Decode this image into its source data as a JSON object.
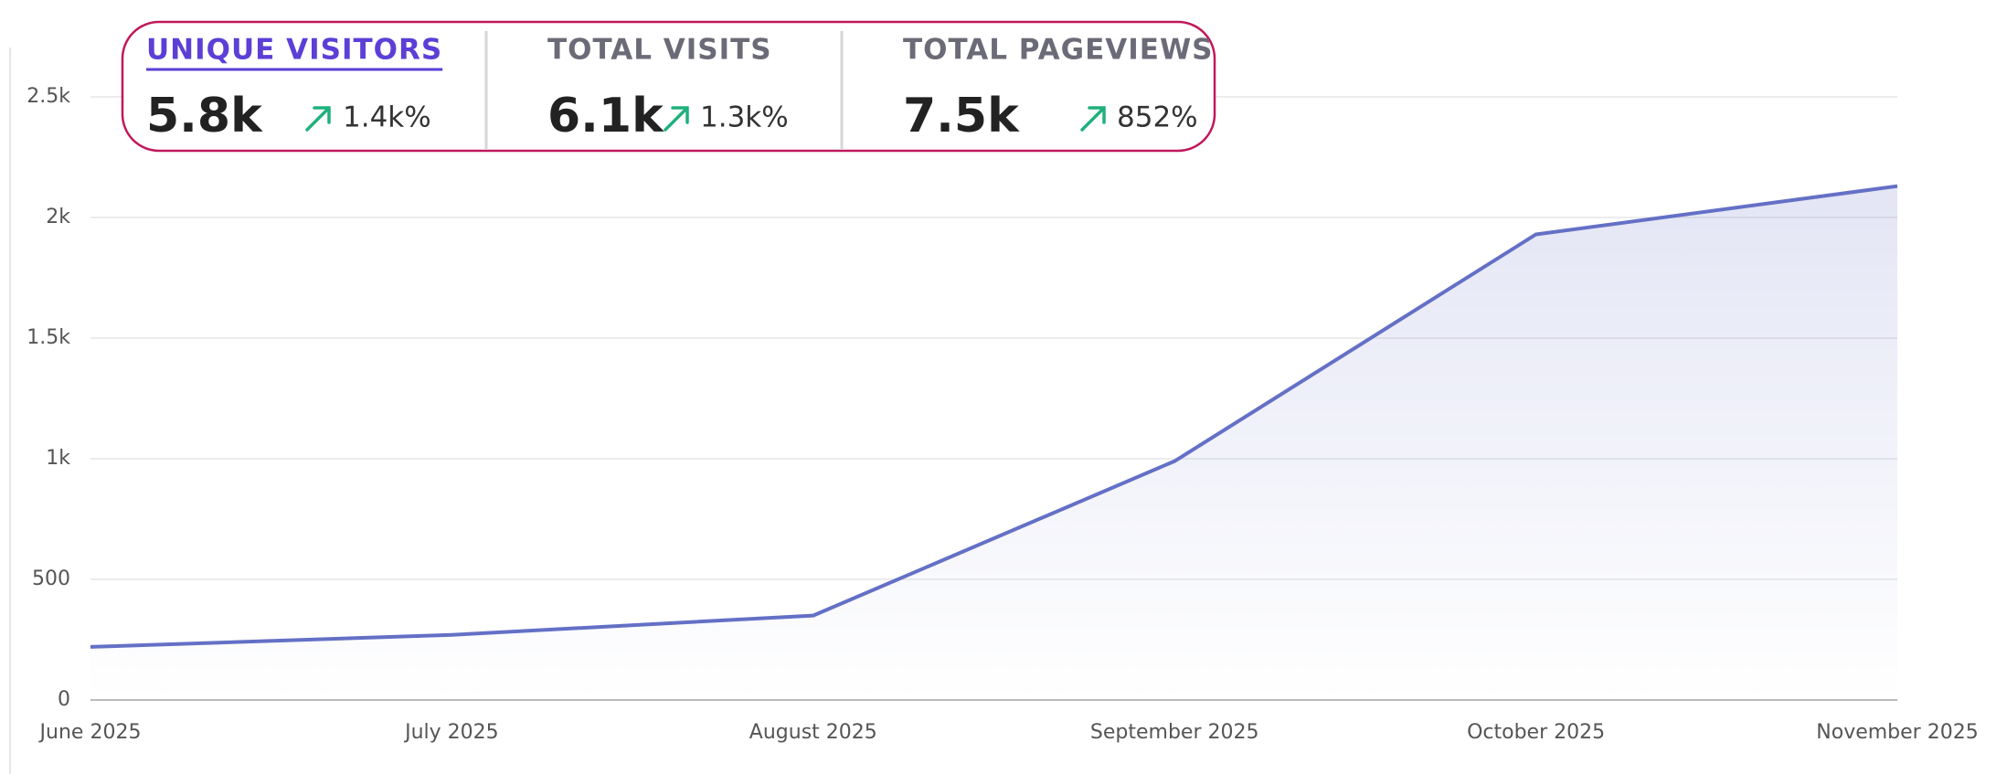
{
  "chart_data": {
    "type": "line",
    "categories": [
      "June 2025",
      "July 2025",
      "August 2025",
      "September 2025",
      "October 2025",
      "November 2025"
    ],
    "series": [
      {
        "color": "#6470c6",
        "values": [
          220,
          270,
          350,
          990,
          1930,
          2130
        ]
      }
    ],
    "ylim": [
      0,
      2500
    ],
    "yticks": [
      0,
      500,
      {
        "value": 1000,
        "label": "1k"
      },
      {
        "value": 1500,
        "label": "1.5k"
      },
      {
        "value": 2000,
        "label": "2k"
      },
      {
        "value": 2500,
        "label": "2.5k"
      }
    ],
    "grid": true
  },
  "metrics": [
    {
      "label": "UNIQUE VISITORS",
      "value": "5.8k",
      "change": "1.4k%",
      "active": true
    },
    {
      "label": "TOTAL VISITS",
      "value": "6.1k",
      "change": "1.3k%",
      "active": false
    },
    {
      "label": "TOTAL PAGEVIEWS",
      "value": "7.5k",
      "change": "852%",
      "active": false
    }
  ]
}
